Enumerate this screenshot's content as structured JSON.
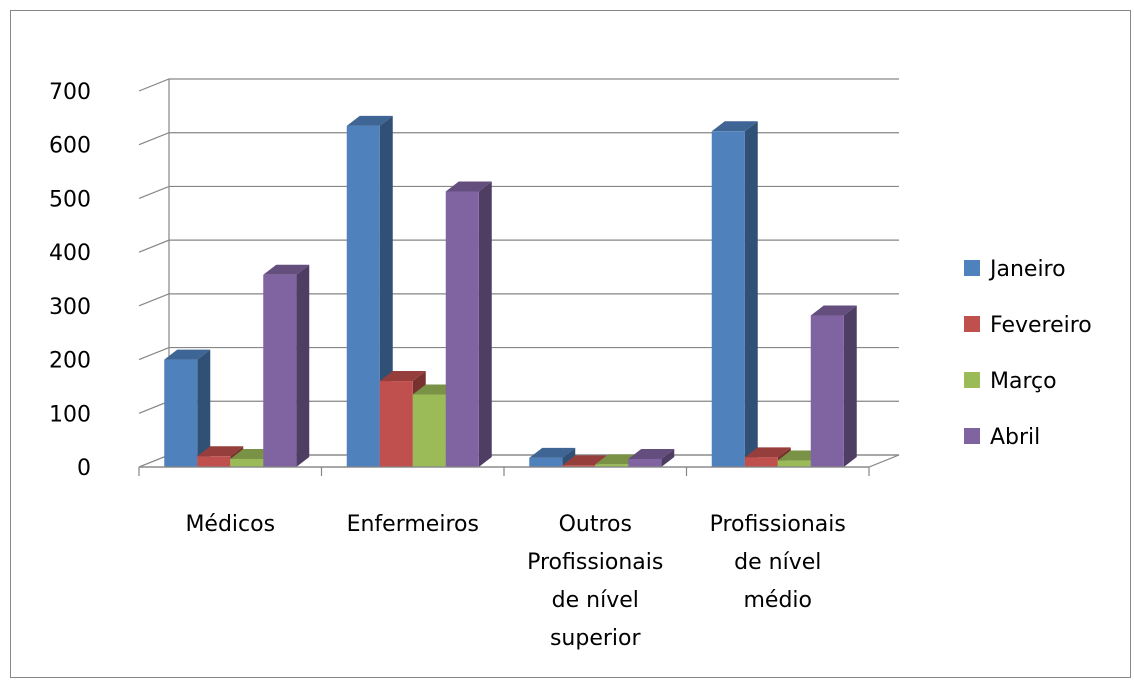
{
  "chart_data": {
    "type": "bar",
    "title": "",
    "xlabel": "",
    "ylabel": "",
    "ylim": [
      0,
      700
    ],
    "yticks": [
      0,
      100,
      200,
      300,
      400,
      500,
      600,
      700
    ],
    "categories": [
      [
        "Médicos"
      ],
      [
        "Enfermeiros"
      ],
      [
        "Outros",
        "Profissionais",
        "de nível",
        "superior"
      ],
      [
        "Profissionais",
        "de nível",
        "médio"
      ]
    ],
    "series": [
      {
        "name": "Janeiro",
        "color": "#4F81BD",
        "values": [
          200,
          635,
          17,
          625
        ]
      },
      {
        "name": "Fevereiro",
        "color": "#C0504D",
        "values": [
          20,
          160,
          3,
          18
        ]
      },
      {
        "name": "Março",
        "color": "#9BBB59",
        "values": [
          15,
          135,
          5,
          12
        ]
      },
      {
        "name": "Abril",
        "color": "#8064A2",
        "values": [
          358,
          513,
          15,
          282
        ]
      }
    ],
    "grid": true,
    "legend": "right",
    "style": "3d-clustered-column"
  }
}
